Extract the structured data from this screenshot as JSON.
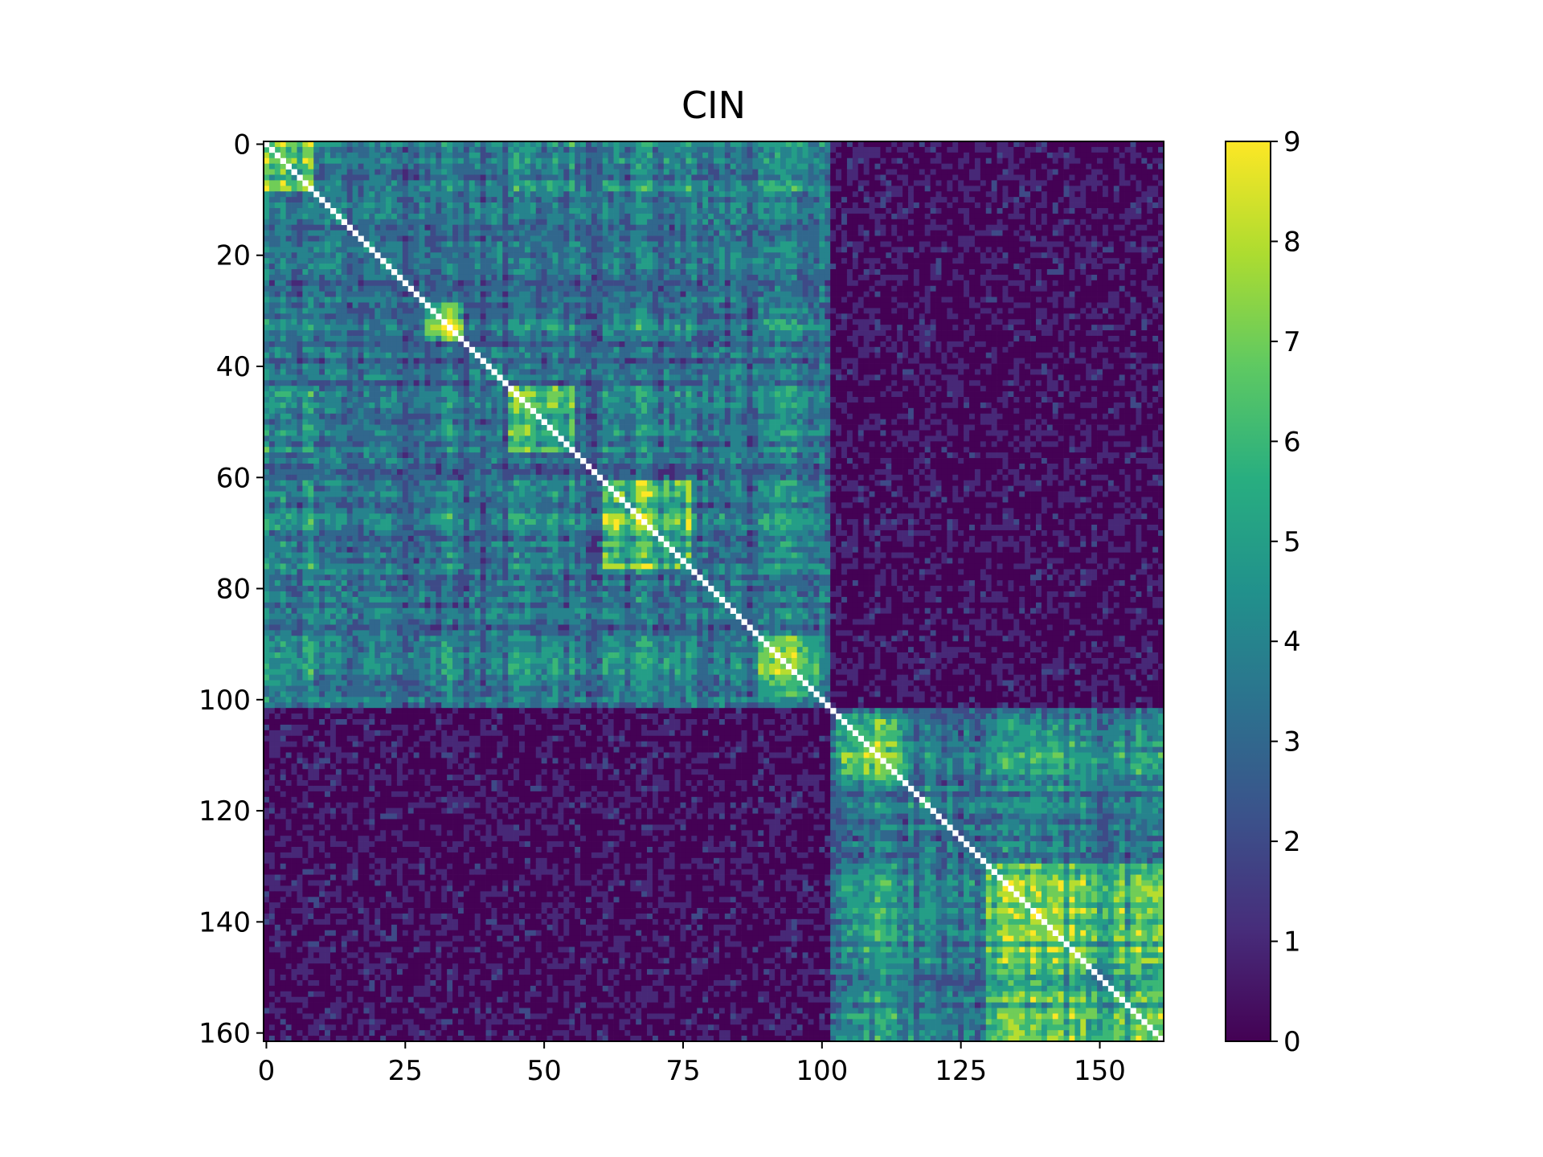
{
  "chart_data": {
    "type": "heatmap",
    "title": "CIN",
    "xlabel": "",
    "ylabel": "",
    "n_rows": 162,
    "n_cols": 162,
    "x_ticks": [
      0,
      25,
      50,
      75,
      100,
      125,
      150
    ],
    "x_tick_labels": [
      "0",
      "25",
      "50",
      "75",
      "100",
      "125",
      "150"
    ],
    "y_ticks": [
      0,
      20,
      40,
      60,
      80,
      100,
      120,
      140,
      160
    ],
    "y_tick_labels": [
      "0",
      "20",
      "40",
      "60",
      "80",
      "100",
      "120",
      "140",
      "160"
    ],
    "diagonal_color": "#ffffff",
    "colormap": "viridis",
    "vmin": 0,
    "vmax": 9,
    "colorbar_ticks": [
      0,
      1,
      2,
      3,
      4,
      5,
      6,
      7,
      8,
      9
    ],
    "colorbar_tick_labels": [
      "0",
      "1",
      "2",
      "3",
      "4",
      "5",
      "6",
      "7",
      "8",
      "9"
    ],
    "colormap_stops": [
      "#440154",
      "#472d7b",
      "#3b528b",
      "#2c728e",
      "#21918c",
      "#28ae80",
      "#5ec962",
      "#addc30",
      "#fde725"
    ],
    "block_structure": {
      "blocks": [
        {
          "start": 0,
          "end": 101,
          "mean_value": 3.2
        },
        {
          "start": 102,
          "end": 161,
          "mean_value": 3.6
        }
      ],
      "off_block_mean_value": 0.6,
      "hot_sub_blocks": [
        {
          "start": 0,
          "end": 8,
          "mean_value": 6.5
        },
        {
          "start": 29,
          "end": 35,
          "mean_value": 8.2
        },
        {
          "start": 44,
          "end": 55,
          "mean_value": 6.0
        },
        {
          "start": 61,
          "end": 76,
          "mean_value": 6.3
        },
        {
          "start": 89,
          "end": 99,
          "mean_value": 6.0
        },
        {
          "start": 103,
          "end": 115,
          "mean_value": 6.2
        },
        {
          "start": 130,
          "end": 161,
          "mean_value": 6.0
        }
      ]
    }
  }
}
